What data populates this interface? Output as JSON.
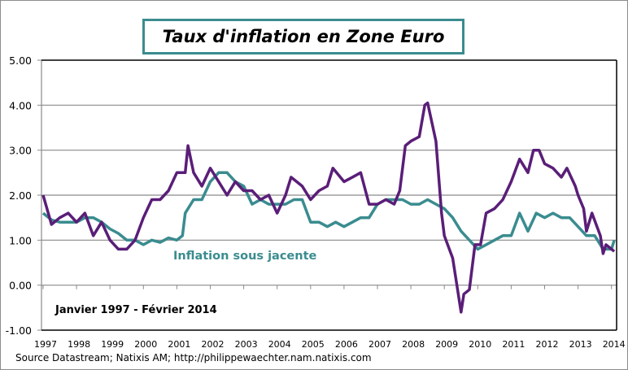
{
  "chart_data": {
    "type": "line",
    "title": "Taux d'inflation en Zone Euro",
    "annotation_period": "Janvier 1997 - Février 2014",
    "source": "Source Datastream; Natixis AM; http://philippewaechter.nam.natixis.com",
    "ylim": [
      -1,
      5
    ],
    "yticks": [
      "5.00",
      "4.00",
      "3.00",
      "2.00",
      "1.00",
      "0.00",
      "-1.00"
    ],
    "ytick_values": [
      5,
      4,
      3,
      2,
      1,
      0,
      -1
    ],
    "xticks": [
      "1997",
      "1998",
      "1999",
      "2000",
      "2001",
      "2002",
      "2003",
      "2004",
      "2005",
      "2006",
      "2007",
      "2008",
      "2009",
      "2010",
      "2011",
      "2012",
      "2013",
      "2014"
    ],
    "grid": true,
    "series": [
      {
        "name": "",
        "color": "#5a1e78",
        "points": [
          [
            "1997-01",
            2.0
          ],
          [
            "1997-04",
            1.35
          ],
          [
            "1997-07",
            1.5
          ],
          [
            "1997-10",
            1.6
          ],
          [
            "1998-01",
            1.4
          ],
          [
            "1998-04",
            1.6
          ],
          [
            "1998-07",
            1.1
          ],
          [
            "1998-10",
            1.4
          ],
          [
            "1999-01",
            1.0
          ],
          [
            "1999-04",
            0.8
          ],
          [
            "1999-07",
            0.8
          ],
          [
            "1999-10",
            1.0
          ],
          [
            "2000-01",
            1.5
          ],
          [
            "2000-04",
            1.9
          ],
          [
            "2000-07",
            1.9
          ],
          [
            "2000-10",
            2.1
          ],
          [
            "2001-01",
            2.5
          ],
          [
            "2001-04",
            2.5
          ],
          [
            "2001-05",
            3.1
          ],
          [
            "2001-07",
            2.5
          ],
          [
            "2001-10",
            2.2
          ],
          [
            "2002-01",
            2.6
          ],
          [
            "2002-04",
            2.3
          ],
          [
            "2002-07",
            2.0
          ],
          [
            "2002-10",
            2.3
          ],
          [
            "2003-01",
            2.1
          ],
          [
            "2003-04",
            2.1
          ],
          [
            "2003-07",
            1.9
          ],
          [
            "2003-10",
            2.0
          ],
          [
            "2004-01",
            1.6
          ],
          [
            "2004-04",
            2.0
          ],
          [
            "2004-06",
            2.4
          ],
          [
            "2004-10",
            2.2
          ],
          [
            "2005-01",
            1.9
          ],
          [
            "2005-04",
            2.1
          ],
          [
            "2005-07",
            2.2
          ],
          [
            "2005-09",
            2.6
          ],
          [
            "2006-01",
            2.3
          ],
          [
            "2006-04",
            2.4
          ],
          [
            "2006-07",
            2.5
          ],
          [
            "2006-10",
            1.8
          ],
          [
            "2007-01",
            1.8
          ],
          [
            "2007-04",
            1.9
          ],
          [
            "2007-07",
            1.8
          ],
          [
            "2007-09",
            2.1
          ],
          [
            "2007-11",
            3.1
          ],
          [
            "2008-01",
            3.2
          ],
          [
            "2008-04",
            3.3
          ],
          [
            "2008-06",
            4.0
          ],
          [
            "2008-07",
            4.05
          ],
          [
            "2008-10",
            3.2
          ],
          [
            "2008-12",
            1.6
          ],
          [
            "2009-01",
            1.1
          ],
          [
            "2009-04",
            0.6
          ],
          [
            "2009-07",
            -0.6
          ],
          [
            "2009-08",
            -0.2
          ],
          [
            "2009-10",
            -0.1
          ],
          [
            "2009-12",
            0.9
          ],
          [
            "2010-02",
            0.9
          ],
          [
            "2010-04",
            1.6
          ],
          [
            "2010-07",
            1.7
          ],
          [
            "2010-10",
            1.9
          ],
          [
            "2011-01",
            2.3
          ],
          [
            "2011-04",
            2.8
          ],
          [
            "2011-07",
            2.5
          ],
          [
            "2011-09",
            3.0
          ],
          [
            "2011-11",
            3.0
          ],
          [
            "2012-01",
            2.7
          ],
          [
            "2012-04",
            2.6
          ],
          [
            "2012-07",
            2.4
          ],
          [
            "2012-09",
            2.6
          ],
          [
            "2012-12",
            2.2
          ],
          [
            "2013-01",
            2.0
          ],
          [
            "2013-03",
            1.7
          ],
          [
            "2013-04",
            1.2
          ],
          [
            "2013-06",
            1.6
          ],
          [
            "2013-09",
            1.1
          ],
          [
            "2013-10",
            0.7
          ],
          [
            "2013-11",
            0.9
          ],
          [
            "2014-01",
            0.8
          ],
          [
            "2014-02",
            0.75
          ]
        ]
      },
      {
        "name": "Inflation sous jacente",
        "color": "#3a8c8f",
        "points": [
          [
            "1997-01",
            1.6
          ],
          [
            "1997-04",
            1.45
          ],
          [
            "1997-07",
            1.4
          ],
          [
            "1997-10",
            1.4
          ],
          [
            "1998-01",
            1.4
          ],
          [
            "1998-04",
            1.5
          ],
          [
            "1998-07",
            1.5
          ],
          [
            "1998-10",
            1.4
          ],
          [
            "1999-01",
            1.25
          ],
          [
            "1999-04",
            1.15
          ],
          [
            "1999-07",
            1.0
          ],
          [
            "1999-10",
            1.0
          ],
          [
            "2000-01",
            0.9
          ],
          [
            "2000-04",
            1.0
          ],
          [
            "2000-07",
            0.95
          ],
          [
            "2000-10",
            1.05
          ],
          [
            "2001-01",
            1.0
          ],
          [
            "2001-03",
            1.1
          ],
          [
            "2001-04",
            1.6
          ],
          [
            "2001-07",
            1.9
          ],
          [
            "2001-10",
            1.9
          ],
          [
            "2002-01",
            2.3
          ],
          [
            "2002-04",
            2.5
          ],
          [
            "2002-07",
            2.5
          ],
          [
            "2002-10",
            2.3
          ],
          [
            "2003-01",
            2.2
          ],
          [
            "2003-04",
            1.8
          ],
          [
            "2003-07",
            1.9
          ],
          [
            "2003-10",
            1.8
          ],
          [
            "2004-01",
            1.8
          ],
          [
            "2004-04",
            1.8
          ],
          [
            "2004-07",
            1.9
          ],
          [
            "2004-10",
            1.9
          ],
          [
            "2005-01",
            1.4
          ],
          [
            "2005-04",
            1.4
          ],
          [
            "2005-07",
            1.3
          ],
          [
            "2005-10",
            1.4
          ],
          [
            "2006-01",
            1.3
          ],
          [
            "2006-04",
            1.4
          ],
          [
            "2006-07",
            1.5
          ],
          [
            "2006-10",
            1.5
          ],
          [
            "2007-01",
            1.8
          ],
          [
            "2007-04",
            1.9
          ],
          [
            "2007-07",
            1.9
          ],
          [
            "2007-10",
            1.9
          ],
          [
            "2008-01",
            1.8
          ],
          [
            "2008-04",
            1.8
          ],
          [
            "2008-07",
            1.9
          ],
          [
            "2008-10",
            1.8
          ],
          [
            "2009-01",
            1.7
          ],
          [
            "2009-04",
            1.5
          ],
          [
            "2009-07",
            1.2
          ],
          [
            "2009-10",
            1.0
          ],
          [
            "2010-01",
            0.8
          ],
          [
            "2010-04",
            0.9
          ],
          [
            "2010-07",
            1.0
          ],
          [
            "2010-10",
            1.1
          ],
          [
            "2011-01",
            1.1
          ],
          [
            "2011-04",
            1.6
          ],
          [
            "2011-07",
            1.2
          ],
          [
            "2011-10",
            1.6
          ],
          [
            "2012-01",
            1.5
          ],
          [
            "2012-04",
            1.6
          ],
          [
            "2012-07",
            1.5
          ],
          [
            "2012-10",
            1.5
          ],
          [
            "2013-01",
            1.3
          ],
          [
            "2013-04",
            1.1
          ],
          [
            "2013-07",
            1.1
          ],
          [
            "2013-10",
            0.8
          ],
          [
            "2014-01",
            0.8
          ],
          [
            "2014-02",
            1.0
          ]
        ]
      }
    ]
  }
}
